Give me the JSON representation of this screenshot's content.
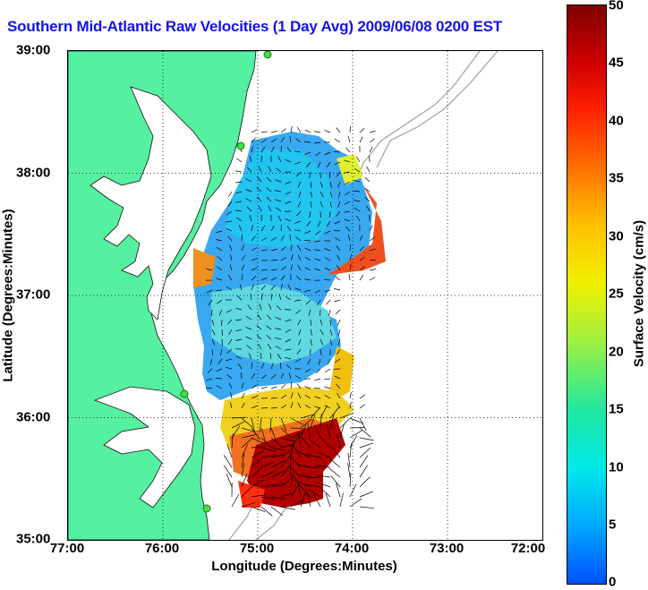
{
  "title": "Southern Mid-Atlantic Raw Velocities (1 Day Avg) 2009/06/08 0200 EST",
  "xaxis": {
    "label": "Longitude (Degrees:Minutes)",
    "ticks": [
      "77:00",
      "76:00",
      "75:00",
      "74:00",
      "73:00",
      "72:00"
    ],
    "range": [
      -77,
      -72
    ]
  },
  "yaxis": {
    "label": "Latitude (Degrees:Minutes)",
    "ticks": [
      "39:00",
      "38:00",
      "37:00",
      "36:00",
      "35:00"
    ],
    "range": [
      35,
      39
    ]
  },
  "colorbar": {
    "label": "Surface Velocity (cm/s)",
    "ticks": [
      "50",
      "45",
      "40",
      "35",
      "30",
      "25",
      "20",
      "15",
      "10",
      "5",
      "0"
    ],
    "range": [
      0,
      50
    ],
    "colors": [
      "#0050ff",
      "#00a8ff",
      "#00e8e8",
      "#20e8a0",
      "#a0f040",
      "#f0f000",
      "#ffc000",
      "#ff7000",
      "#ff2000",
      "#d00000",
      "#800000"
    ]
  },
  "colors": {
    "land": "#55f0a0",
    "title": "#1414e6",
    "grid": "#000000",
    "bathymetry": "#a0a0a0",
    "station": "#44dd44"
  }
}
